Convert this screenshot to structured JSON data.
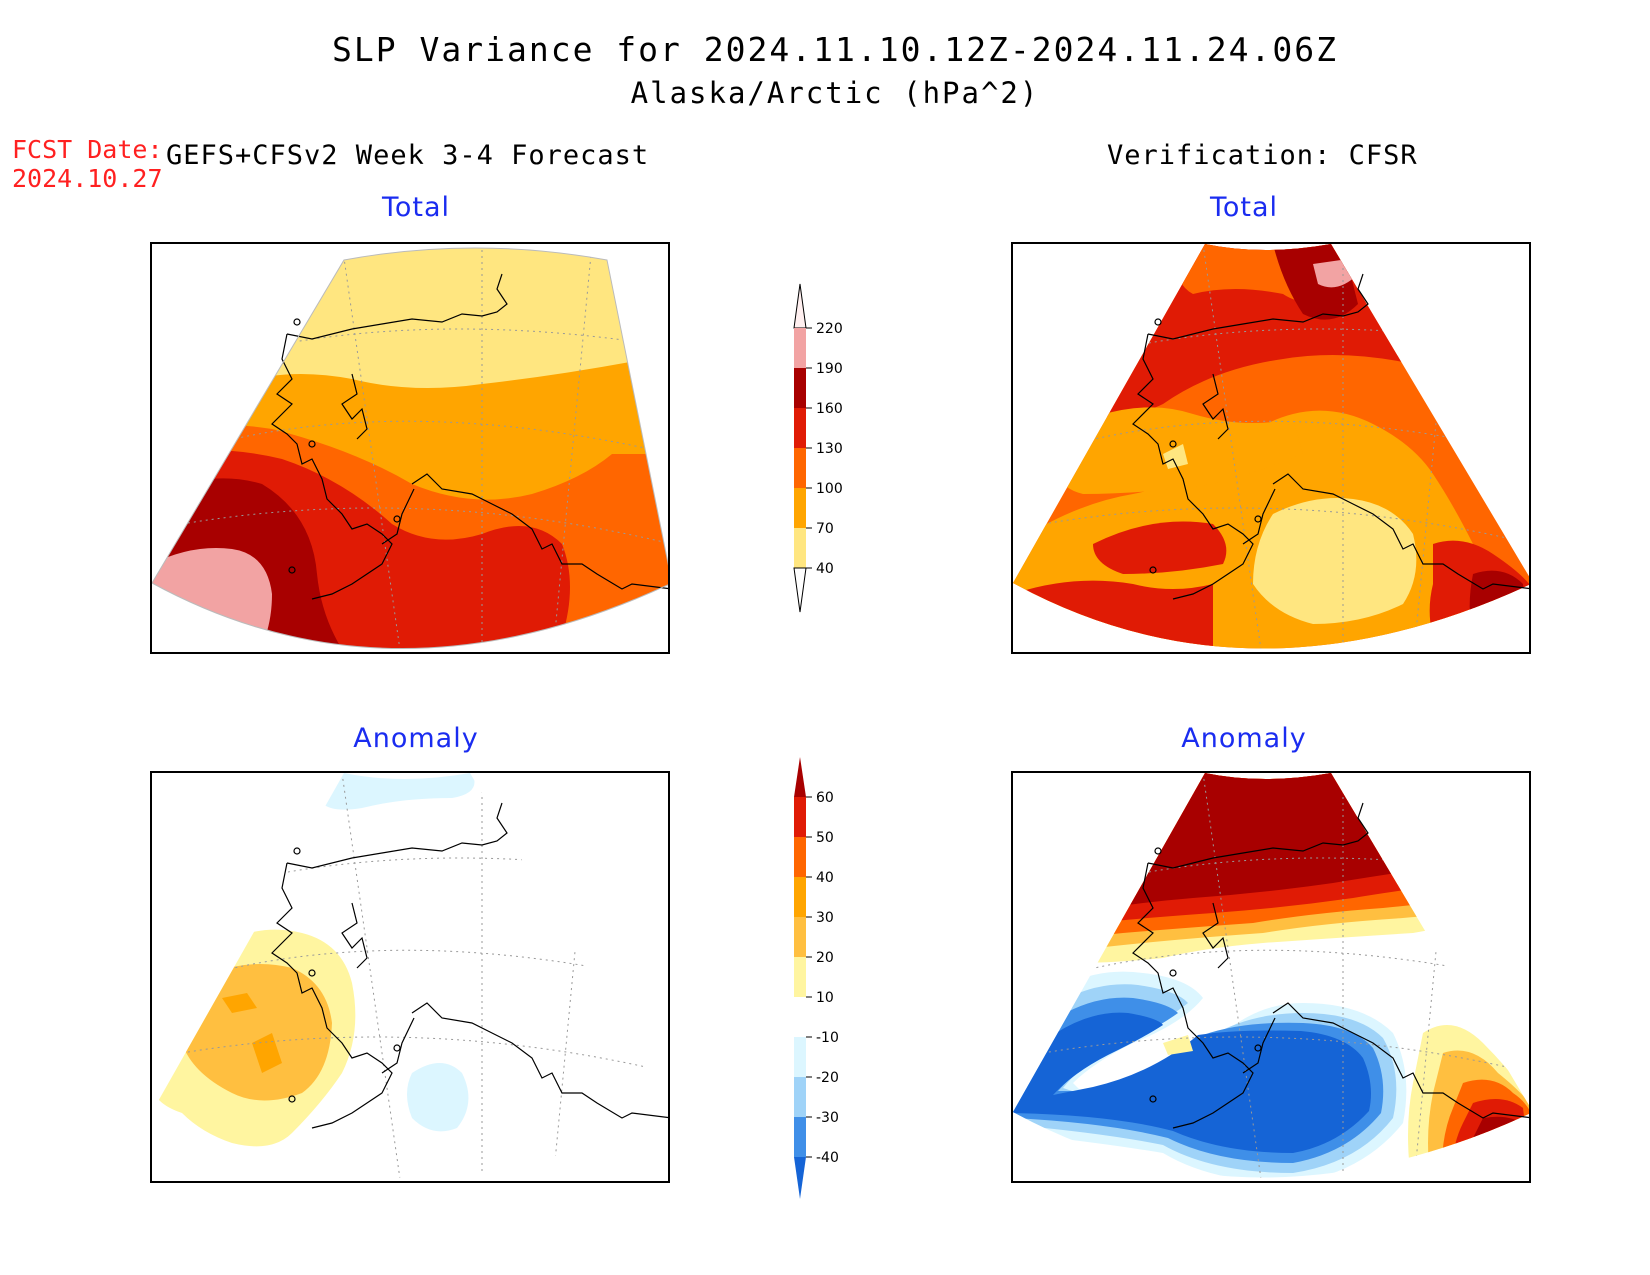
{
  "header": {
    "title": "SLP Variance for 2024.11.10.12Z-2024.11.24.06Z",
    "subtitle": "Alaska/Arctic (hPa^2)",
    "fcst_label": "FCST Date:",
    "fcst_date": "2024.10.27",
    "model_label": "GEFS+CFSv2 Week 3-4 Forecast",
    "verification_label": "Verification: CFSR"
  },
  "panels": {
    "top_left_title": "Total",
    "top_right_title": "Total",
    "bottom_left_title": "Anomaly",
    "bottom_right_title": "Anomaly"
  },
  "colorbar_total": {
    "labels": [
      "220",
      "190",
      "160",
      "130",
      "100",
      "70",
      "40"
    ],
    "colors": [
      "#fff0f0",
      "#f2a3a3",
      "#a80000",
      "#e01b05",
      "#ff6600",
      "#ffa500",
      "#ffe680"
    ]
  },
  "colorbar_anomaly": {
    "labels": [
      "60",
      "50",
      "40",
      "30",
      "20",
      "10",
      "-10",
      "-20",
      "-30",
      "-40"
    ],
    "colors": [
      "#a80000",
      "#e01b05",
      "#ff6600",
      "#ffa500",
      "#ffbf40",
      "#fff5a0",
      "#ffffff",
      "#dcf6ff",
      "#9fd3f8",
      "#3f8fe8",
      "#1564d6"
    ]
  }
}
